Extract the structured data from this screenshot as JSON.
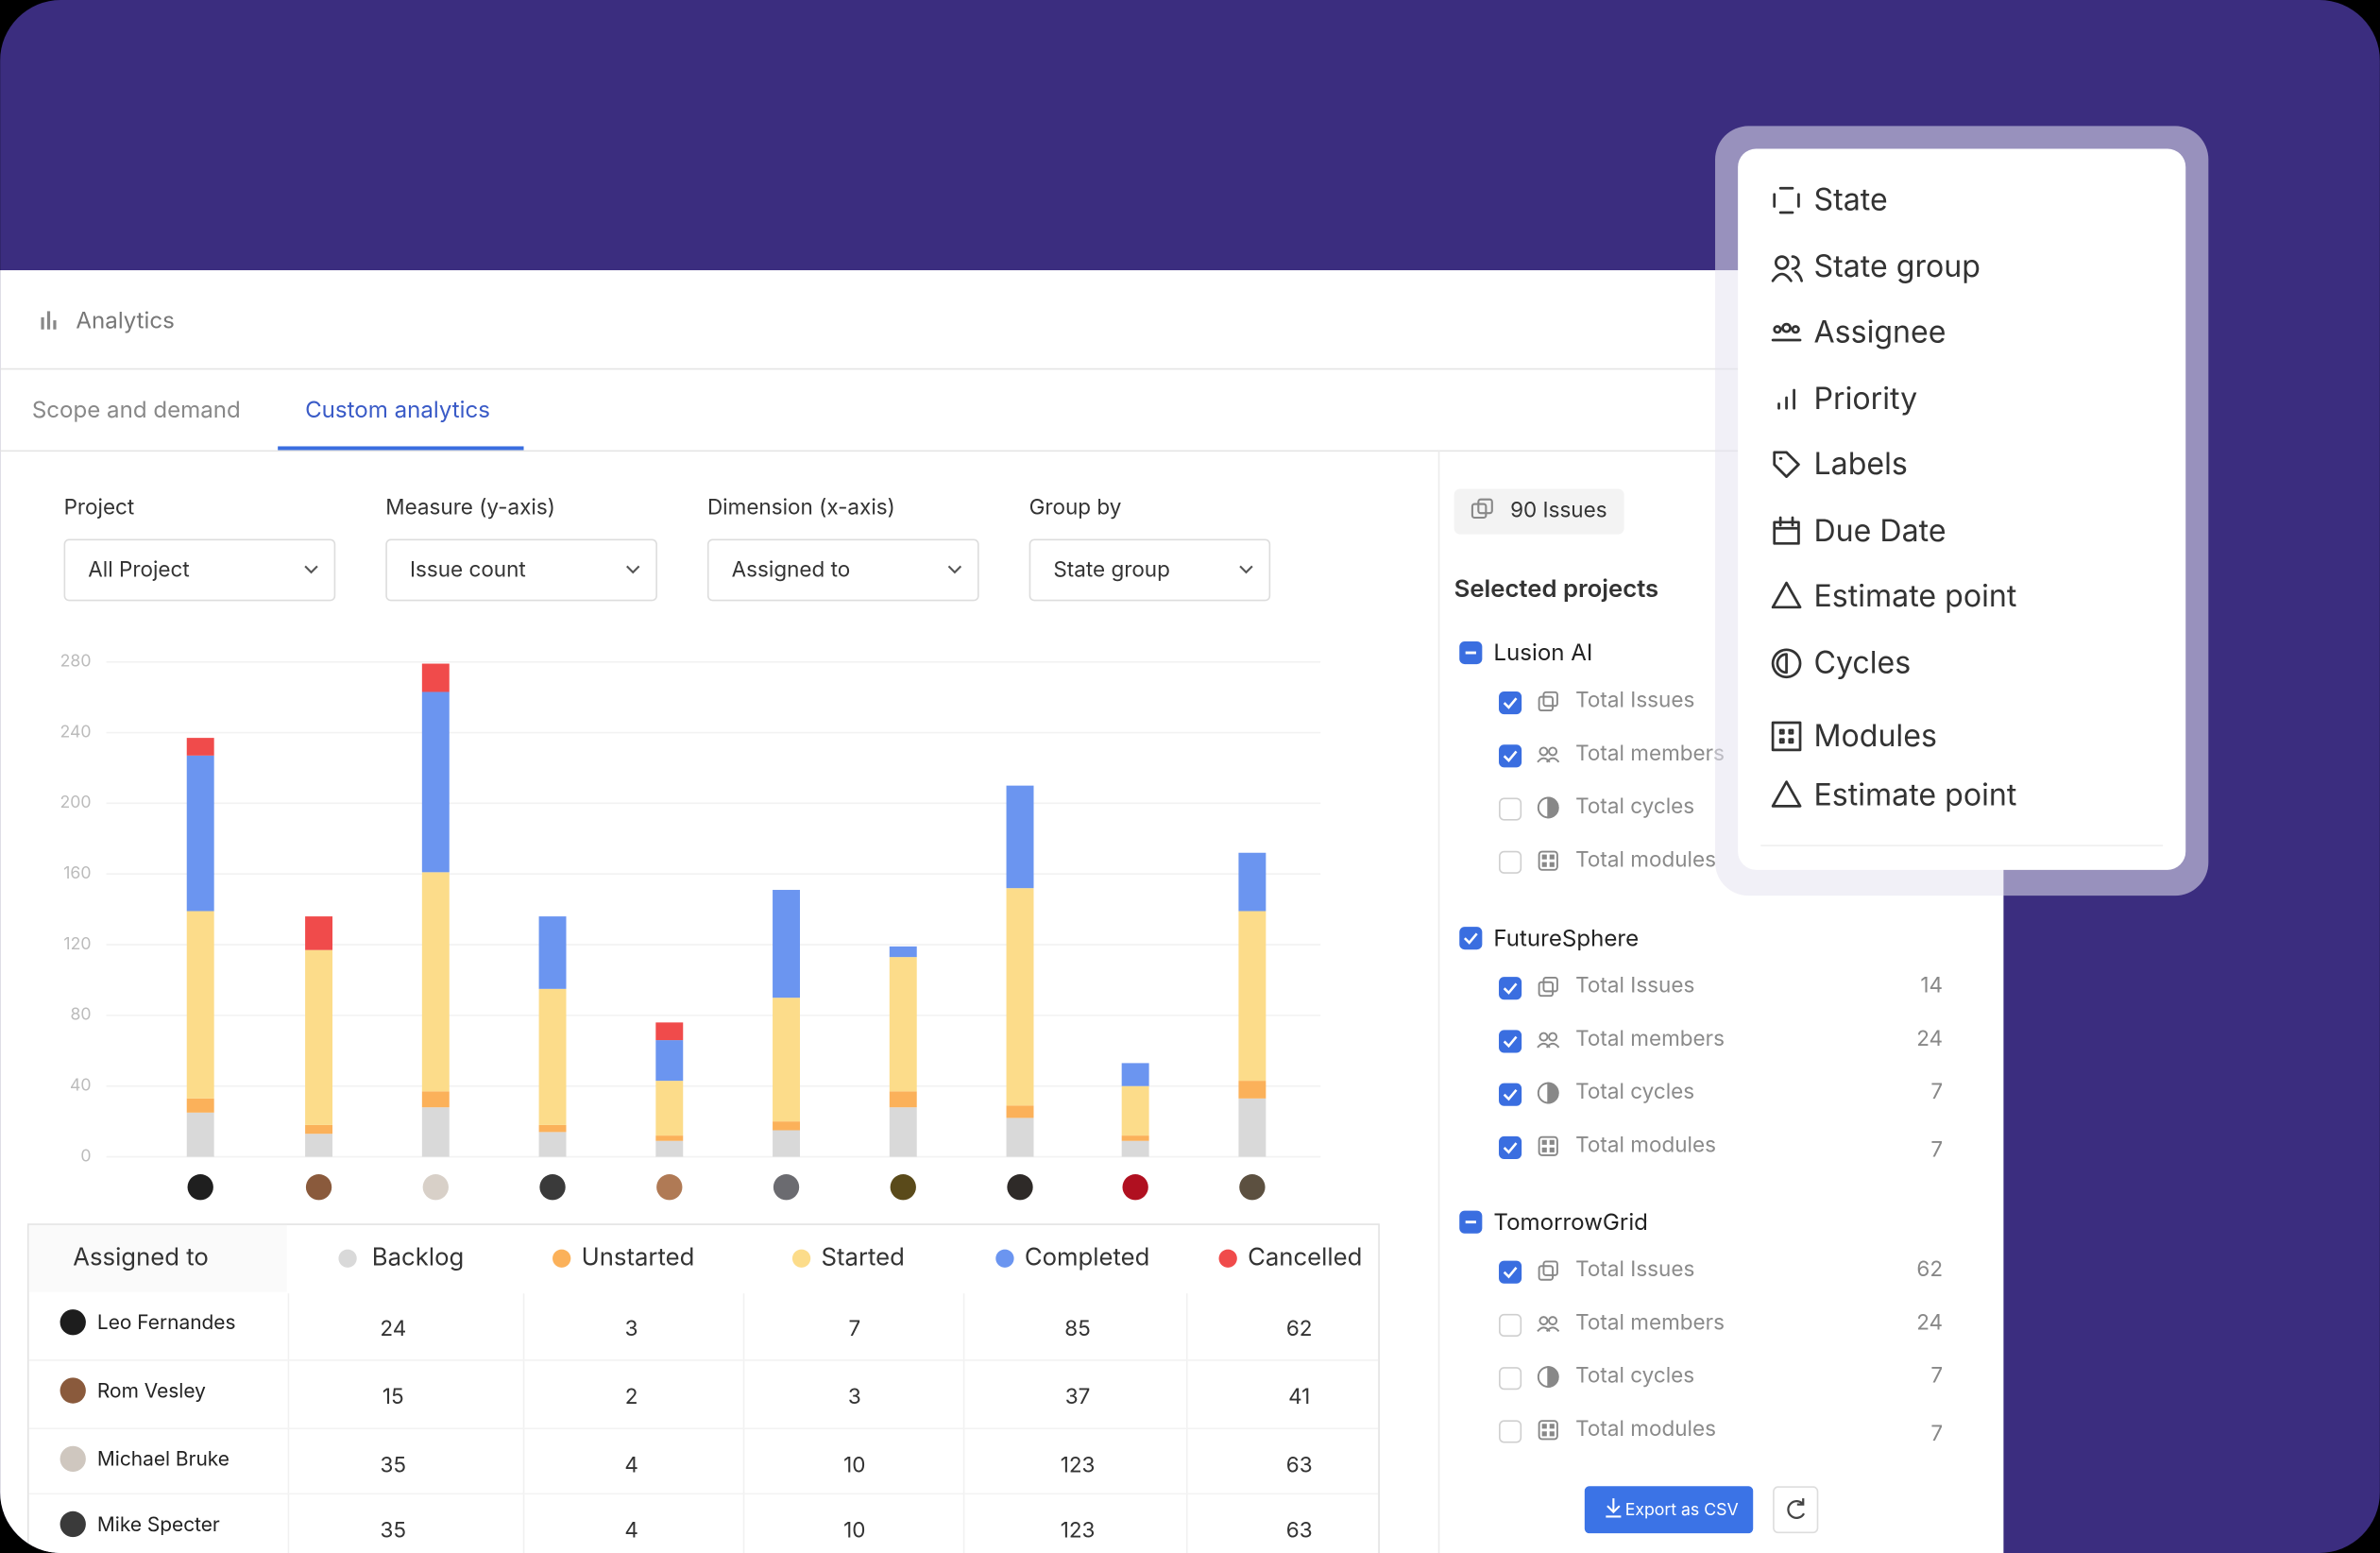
{
  "header": {
    "title": "Analytics"
  },
  "tabs": [
    {
      "label": "Scope  and demand",
      "active": false
    },
    {
      "label": "Custom analytics",
      "active": true
    }
  ],
  "filters": [
    {
      "label": "Project",
      "value": "All Project"
    },
    {
      "label": "Measure (y-axis)",
      "value": "Issue count"
    },
    {
      "label": "Dimension (x-axis)",
      "value": "Assigned to"
    },
    {
      "label": "Group by",
      "value": "State group"
    }
  ],
  "chart_data": {
    "type": "bar",
    "stacked": true,
    "categories": [
      null,
      null,
      null,
      null,
      null,
      null,
      null,
      null,
      null,
      null
    ],
    "series": [
      {
        "name": "Backlog",
        "color": "#d9d9d9",
        "values": [
          25,
          13,
          28,
          14,
          9,
          15,
          28,
          22,
          9,
          33
        ]
      },
      {
        "name": "Unstarted",
        "color": "#fbb15a",
        "values": [
          8,
          5,
          9,
          4,
          3,
          5,
          9,
          7,
          3,
          10
        ]
      },
      {
        "name": "Started",
        "color": "#fcdc8a",
        "values": [
          106,
          99,
          124,
          77,
          31,
          70,
          76,
          123,
          28,
          96
        ]
      },
      {
        "name": "Completed",
        "color": "#6b95f0",
        "values": [
          88,
          0,
          102,
          41,
          23,
          61,
          6,
          58,
          13,
          33
        ]
      },
      {
        "name": "Cancelled",
        "color": "#f04b4b",
        "values": [
          10,
          19,
          16,
          0,
          10,
          0,
          0,
          0,
          0,
          0
        ]
      }
    ],
    "ylim": [
      0,
      280
    ],
    "yticks": [
      0,
      40,
      80,
      120,
      160,
      200,
      240,
      280
    ],
    "grid": true
  },
  "table": {
    "columns": [
      "Assigned to",
      "Backlog",
      "Unstarted",
      "Started",
      "Completed",
      "Cancelled"
    ],
    "rows": [
      [
        "Leo Fernandes",
        24,
        3,
        7,
        85,
        62
      ],
      [
        "Rom Vesley",
        15,
        2,
        3,
        37,
        41
      ],
      [
        "Michael Bruke",
        35,
        4,
        10,
        123,
        63
      ],
      [
        "Mike Specter",
        35,
        4,
        10,
        123,
        63
      ]
    ]
  },
  "sidebar": {
    "issues": "90 Issues",
    "heading": "Selected projects",
    "projects": [
      {
        "name": "Lusion AI",
        "state": "partial",
        "items": [
          {
            "label": "Total Issues",
            "checked": true
          },
          {
            "label": "Total members",
            "checked": true
          },
          {
            "label": "Total cycles",
            "checked": false
          },
          {
            "label": "Total modules",
            "checked": false
          }
        ]
      },
      {
        "name": "FutureSphere",
        "state": "checked",
        "items": [
          {
            "label": "Total Issues",
            "checked": true,
            "count": 14
          },
          {
            "label": "Total members",
            "checked": true,
            "count": 24
          },
          {
            "label": "Total cycles",
            "checked": true,
            "count": 7
          },
          {
            "label": "Total modules",
            "checked": true,
            "count": 7
          }
        ]
      },
      {
        "name": "TomorrowGrid",
        "state": "partial",
        "items": [
          {
            "label": "Total Issues",
            "checked": true,
            "count": 62
          },
          {
            "label": "Total members",
            "checked": false,
            "count": 24
          },
          {
            "label": "Total cycles",
            "checked": false,
            "count": 7
          },
          {
            "label": "Total modules",
            "checked": false,
            "count": 7
          }
        ]
      }
    ],
    "export": "Export as CSV"
  },
  "dropdown": [
    "State",
    "State group",
    "Assignee",
    "Priority",
    "Labels",
    "Due Date",
    "Estimate point",
    "Cycles",
    "Modules",
    "Estimate point"
  ]
}
